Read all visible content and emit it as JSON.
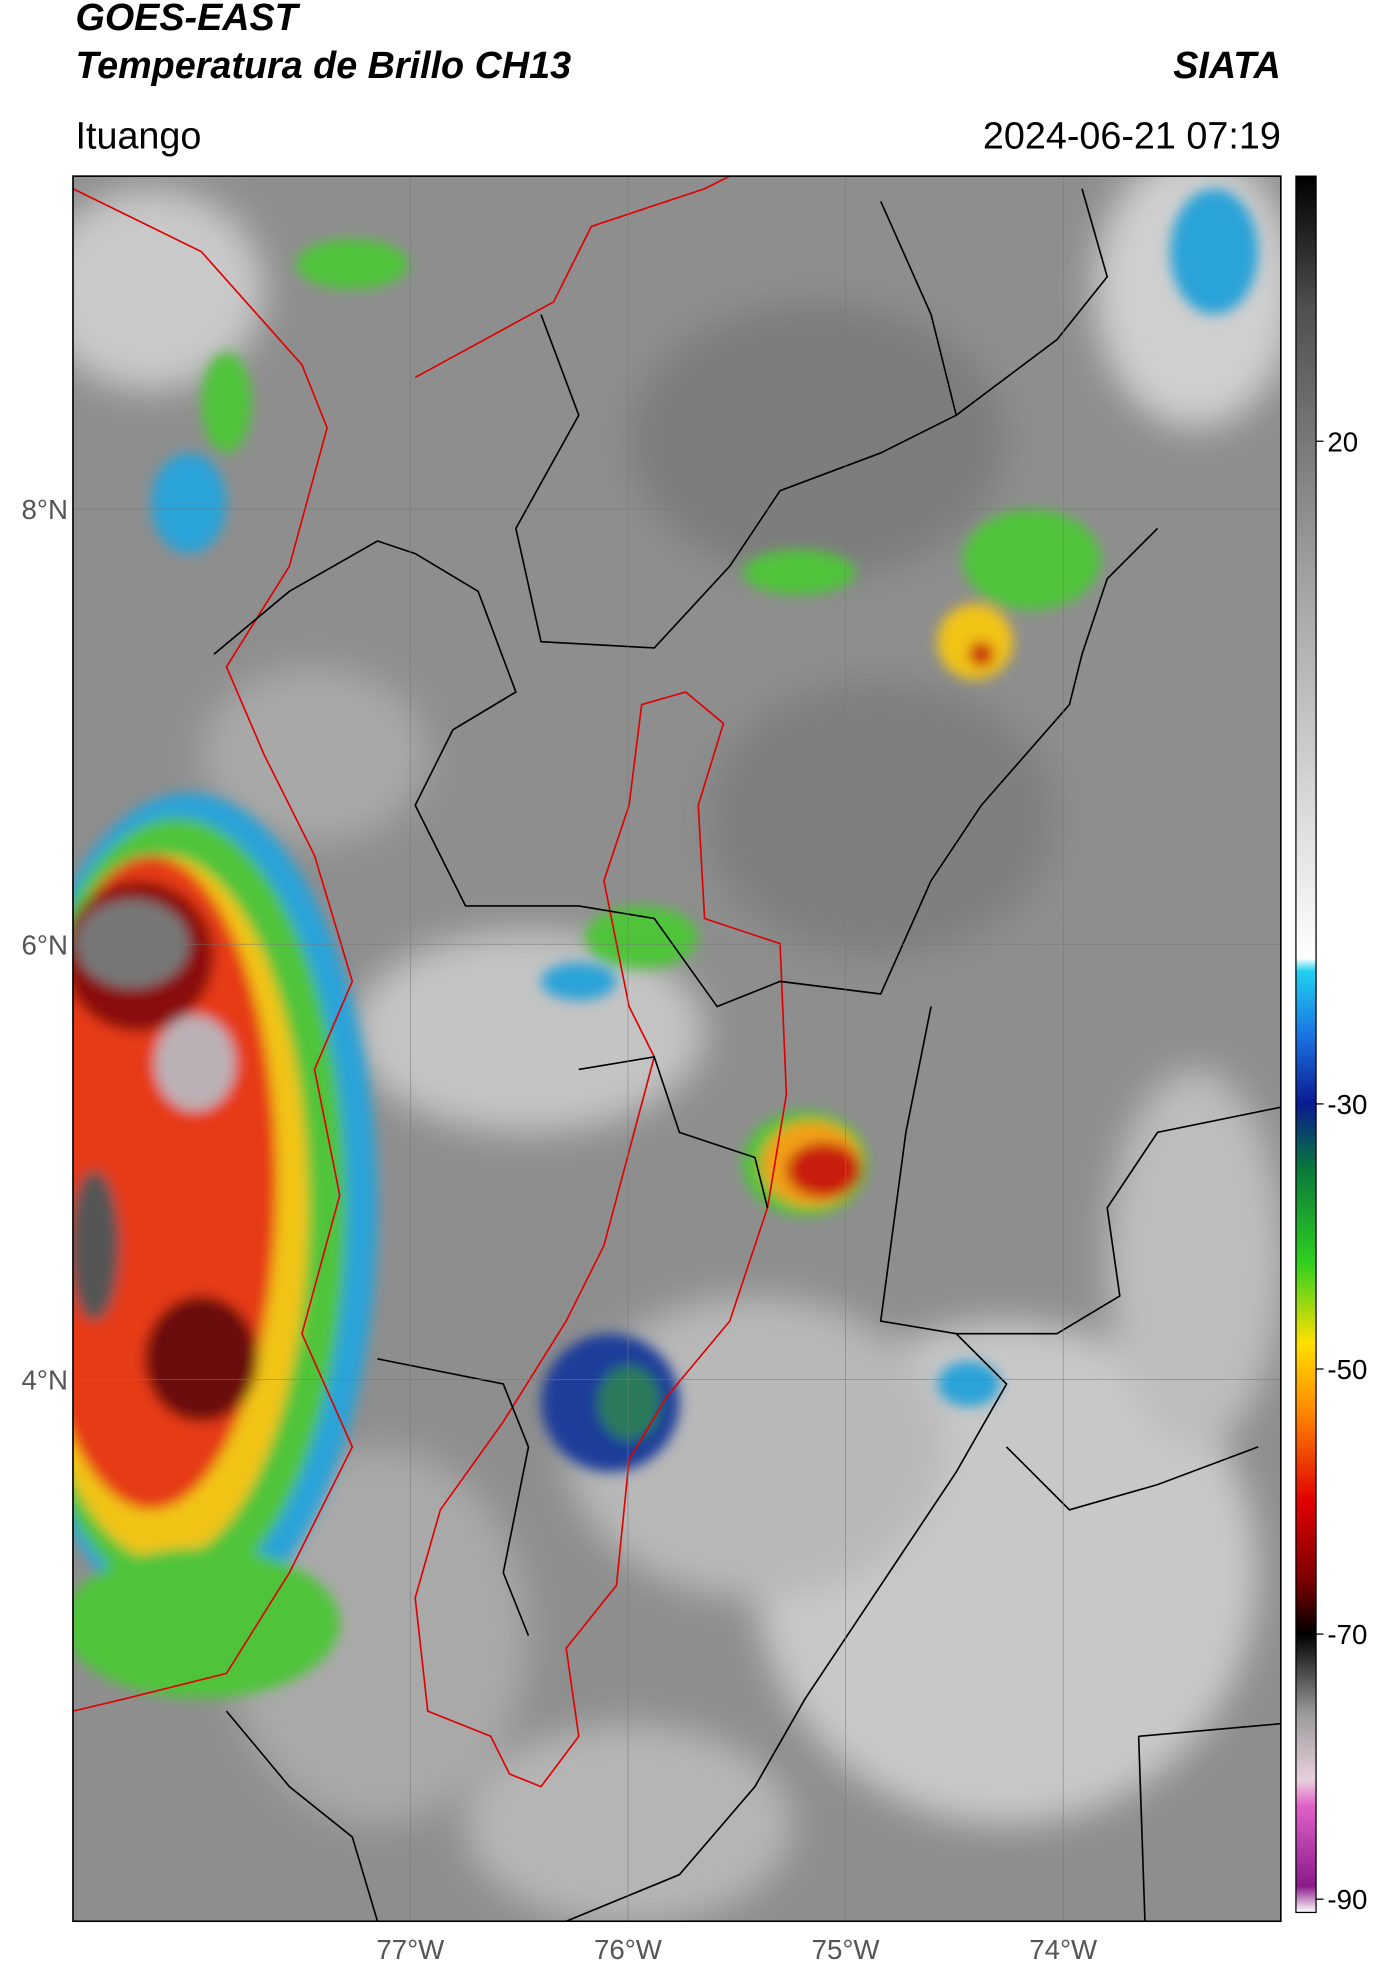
{
  "header": {
    "title": "GOES-EAST",
    "subtitle": "Temperatura de Brillo CH13",
    "source": "SIATA",
    "location": "Ituango",
    "timestamp": "2024-06-21 07:19"
  },
  "map": {
    "xlim": [
      -78.55,
      -73.0
    ],
    "ylim": [
      1.51,
      9.53
    ],
    "xticks": [
      {
        "value": -77,
        "label": "77°W"
      },
      {
        "value": -76,
        "label": "76°W"
      },
      {
        "value": -75,
        "label": "75°W"
      },
      {
        "value": -74,
        "label": "74°W"
      }
    ],
    "yticks": [
      {
        "value": 8,
        "label": "8°N"
      },
      {
        "value": 6,
        "label": "6°N"
      },
      {
        "value": 4,
        "label": "4°N"
      }
    ],
    "grid": true
  },
  "colorbar": {
    "clim": [
      -91,
      40
    ],
    "ticks": [
      -90,
      -70,
      -50,
      -30,
      20
    ],
    "colormap": [
      {
        "value": -91,
        "color": "#ffffff"
      },
      {
        "value": -89,
        "color": "#8a1a8a"
      },
      {
        "value": -83,
        "color": "#e060c8"
      },
      {
        "value": -81,
        "color": "#e8d0dc"
      },
      {
        "value": -76,
        "color": "#9a9a9a"
      },
      {
        "value": -70,
        "color": "#000000"
      },
      {
        "value": -66,
        "color": "#7a0000"
      },
      {
        "value": -60,
        "color": "#e00000"
      },
      {
        "value": -53,
        "color": "#ff8c00"
      },
      {
        "value": -48,
        "color": "#ffe000"
      },
      {
        "value": -42,
        "color": "#30d020"
      },
      {
        "value": -35,
        "color": "#0a7a3a"
      },
      {
        "value": -30,
        "color": "#0a1a90"
      },
      {
        "value": -25,
        "color": "#1a70e0"
      },
      {
        "value": -20,
        "color": "#20d0f0"
      },
      {
        "value": -19,
        "color": "#ffffff"
      },
      {
        "value": 10,
        "color": "#a0a0a0"
      },
      {
        "value": 30,
        "color": "#505050"
      },
      {
        "value": 40,
        "color": "#000000"
      }
    ]
  }
}
